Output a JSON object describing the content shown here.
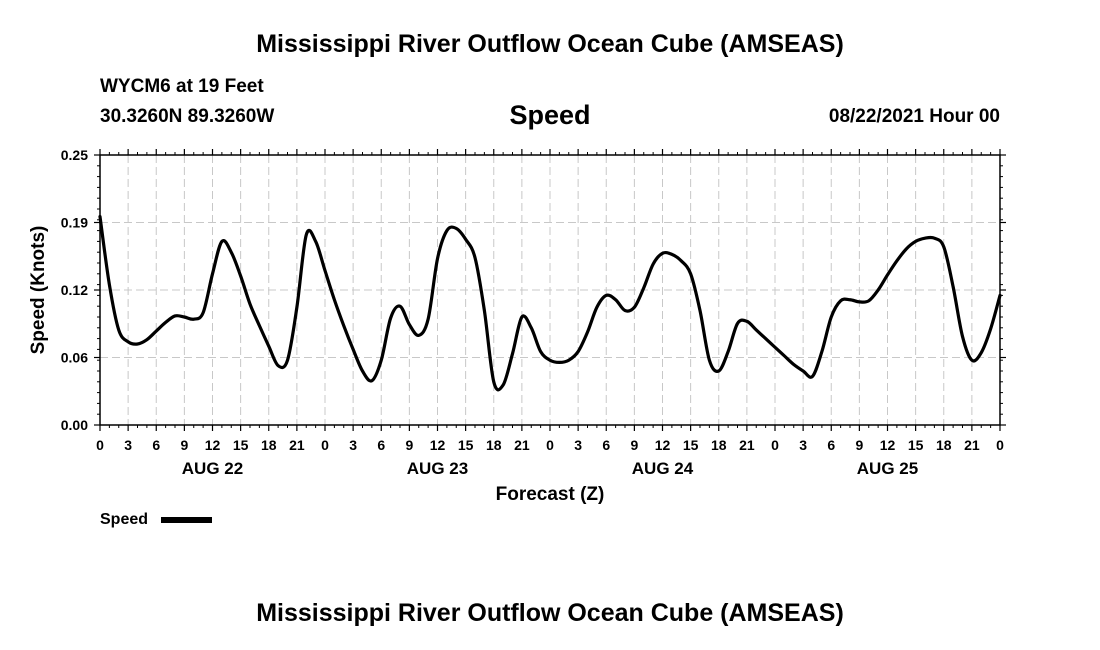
{
  "header": {
    "title": "Mississippi River Outflow Ocean Cube (AMSEAS)",
    "station": "WYCM6 at 19 Feet",
    "coordinates": "30.3260N  89.3260W",
    "datetime": "08/22/2021 Hour 00"
  },
  "footer": {
    "title": "Mississippi River Outflow Ocean Cube (AMSEAS)"
  },
  "chart_data": {
    "type": "line",
    "title": "Speed",
    "xlabel": "Forecast (Z)",
    "ylabel": "Speed (Knots)",
    "xlim": [
      0,
      96
    ],
    "ylim": [
      0,
      0.25
    ],
    "y_ticks": [
      "0.00",
      "0.06",
      "0.12",
      "0.19",
      "0.25"
    ],
    "y_tick_values": [
      0,
      0.0625,
      0.125,
      0.1875,
      0.25
    ],
    "x_tick_labels": [
      "0",
      "3",
      "6",
      "9",
      "12",
      "15",
      "18",
      "21",
      "0",
      "3",
      "6",
      "9",
      "12",
      "15",
      "18",
      "21",
      "0",
      "3",
      "6",
      "9",
      "12",
      "15",
      "18",
      "21",
      "0",
      "3",
      "6",
      "9",
      "12",
      "15",
      "18",
      "21",
      "0"
    ],
    "day_labels": [
      "AUG 22",
      "AUG 23",
      "AUG 24",
      "AUG 25"
    ],
    "grid": true,
    "legend": {
      "position": "bottom-left",
      "entries": [
        "Speed"
      ]
    },
    "series": [
      {
        "name": "Speed",
        "x": [
          0,
          1,
          2,
          3,
          4,
          5,
          6,
          7,
          8,
          9,
          10,
          11,
          12,
          13,
          14,
          15,
          16,
          17,
          18,
          19,
          20,
          21,
          22,
          23,
          24,
          25,
          26,
          27,
          28,
          29,
          30,
          31,
          32,
          33,
          34,
          35,
          36,
          37,
          38,
          39,
          40,
          41,
          42,
          43,
          44,
          45,
          46,
          47,
          48,
          49,
          50,
          51,
          52,
          53,
          54,
          55,
          56,
          57,
          58,
          59,
          60,
          61,
          62,
          63,
          64,
          65,
          66,
          67,
          68,
          69,
          70,
          71,
          72,
          73,
          74,
          75,
          76,
          77,
          78,
          79,
          80,
          81,
          82,
          83,
          84,
          85,
          86,
          87,
          88,
          89,
          90,
          91,
          92,
          93,
          94,
          95,
          96
        ],
        "values": [
          0.193,
          0.13,
          0.088,
          0.077,
          0.075,
          0.079,
          0.087,
          0.095,
          0.101,
          0.1,
          0.098,
          0.104,
          0.14,
          0.17,
          0.16,
          0.138,
          0.112,
          0.092,
          0.073,
          0.055,
          0.06,
          0.109,
          0.176,
          0.17,
          0.143,
          0.116,
          0.092,
          0.07,
          0.05,
          0.041,
          0.06,
          0.099,
          0.11,
          0.093,
          0.083,
          0.098,
          0.154,
          0.18,
          0.182,
          0.172,
          0.155,
          0.106,
          0.04,
          0.037,
          0.066,
          0.1,
          0.09,
          0.068,
          0.06,
          0.058,
          0.06,
          0.068,
          0.086,
          0.109,
          0.12,
          0.116,
          0.106,
          0.109,
          0.127,
          0.149,
          0.159,
          0.158,
          0.152,
          0.14,
          0.106,
          0.06,
          0.05,
          0.068,
          0.094,
          0.096,
          0.088,
          0.08,
          0.072,
          0.064,
          0.056,
          0.05,
          0.045,
          0.068,
          0.1,
          0.115,
          0.116,
          0.114,
          0.115,
          0.125,
          0.139,
          0.152,
          0.163,
          0.17,
          0.173,
          0.173,
          0.165,
          0.128,
          0.082,
          0.06,
          0.067,
          0.089,
          0.12
        ]
      }
    ]
  }
}
